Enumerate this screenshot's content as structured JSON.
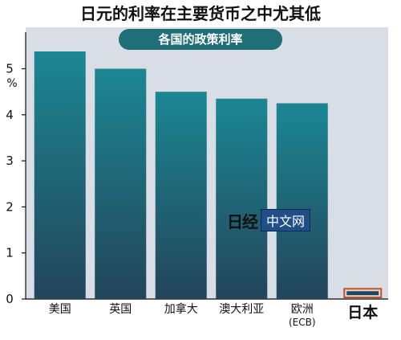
{
  "title": "日元的利率在主要货币之中尤其低",
  "subtitle": "各国的政策利率",
  "watermark": {
    "logo_text": "日经",
    "box_text": "中文网"
  },
  "colors": {
    "plot_bg": "#d9dee6",
    "bar_top": "#1b8793",
    "bar_bottom": "#23455a",
    "highlight_outline": "#c8501e",
    "pill_bg": "#1f6e78"
  },
  "chart_data": {
    "type": "bar",
    "title": "日元的利率在主要货币之中尤其低",
    "subtitle": "各国的政策利率",
    "ylabel": "%",
    "xlabel": "",
    "ylim": [
      0,
      5.5
    ],
    "yticks": [
      0,
      1,
      2,
      3,
      4,
      5
    ],
    "grid": false,
    "categories": [
      "美国",
      "英国",
      "加拿大",
      "澳大利亚",
      "欧洲",
      "日本"
    ],
    "category_sublabels": [
      "",
      "",
      "",
      "",
      "(ECB)",
      ""
    ],
    "highlight_category": "日本",
    "values": [
      5.375,
      5.0,
      4.5,
      4.35,
      4.25,
      0.1
    ]
  }
}
